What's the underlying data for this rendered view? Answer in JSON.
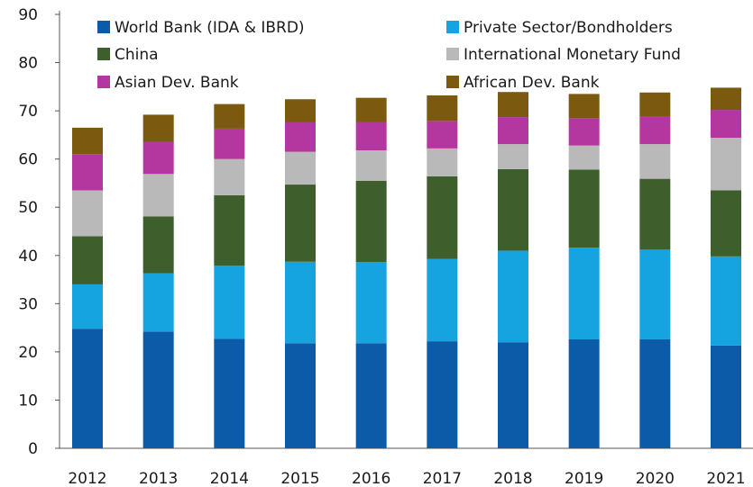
{
  "chart_data": {
    "type": "bar",
    "stacked": true,
    "categories": [
      "2012",
      "2013",
      "2014",
      "2015",
      "2016",
      "2017",
      "2018",
      "2019",
      "2020",
      "2021"
    ],
    "ylim": [
      0,
      90
    ],
    "yticks": [
      "0",
      "10",
      "20",
      "30",
      "40",
      "50",
      "60",
      "70",
      "80",
      "90"
    ],
    "grid": false,
    "legend_position": "top",
    "series": [
      {
        "name": "World Bank (IDA & IBRD)",
        "color": "#0b5ba8",
        "values": [
          24.8,
          24.2,
          22.7,
          21.8,
          21.8,
          22.2,
          22.0,
          22.6,
          22.6,
          21.3
        ]
      },
      {
        "name": "Private Sector/Bondholders",
        "color": "#16a4e0",
        "values": [
          9.2,
          12.1,
          15.2,
          16.9,
          16.8,
          17.1,
          19.0,
          19.0,
          18.6,
          18.5
        ]
      },
      {
        "name": "China",
        "color": "#3e5f2c",
        "values": [
          10.0,
          11.8,
          14.6,
          16.0,
          16.9,
          17.1,
          16.9,
          16.2,
          14.7,
          13.7
        ]
      },
      {
        "name": "International Monetary Fund",
        "color": "#b9b9b9",
        "values": [
          9.5,
          8.8,
          7.5,
          6.8,
          6.3,
          5.8,
          5.2,
          5.0,
          7.2,
          10.9
        ]
      },
      {
        "name": "Asian Dev. Bank",
        "color": "#b4379f",
        "values": [
          7.5,
          6.6,
          6.3,
          6.1,
          5.8,
          5.7,
          5.6,
          5.6,
          5.8,
          5.8
        ]
      },
      {
        "name": "African Dev. Bank",
        "color": "#7b5a10",
        "values": [
          5.5,
          5.7,
          5.1,
          4.8,
          5.1,
          5.3,
          5.2,
          5.1,
          4.9,
          4.6
        ]
      }
    ]
  }
}
